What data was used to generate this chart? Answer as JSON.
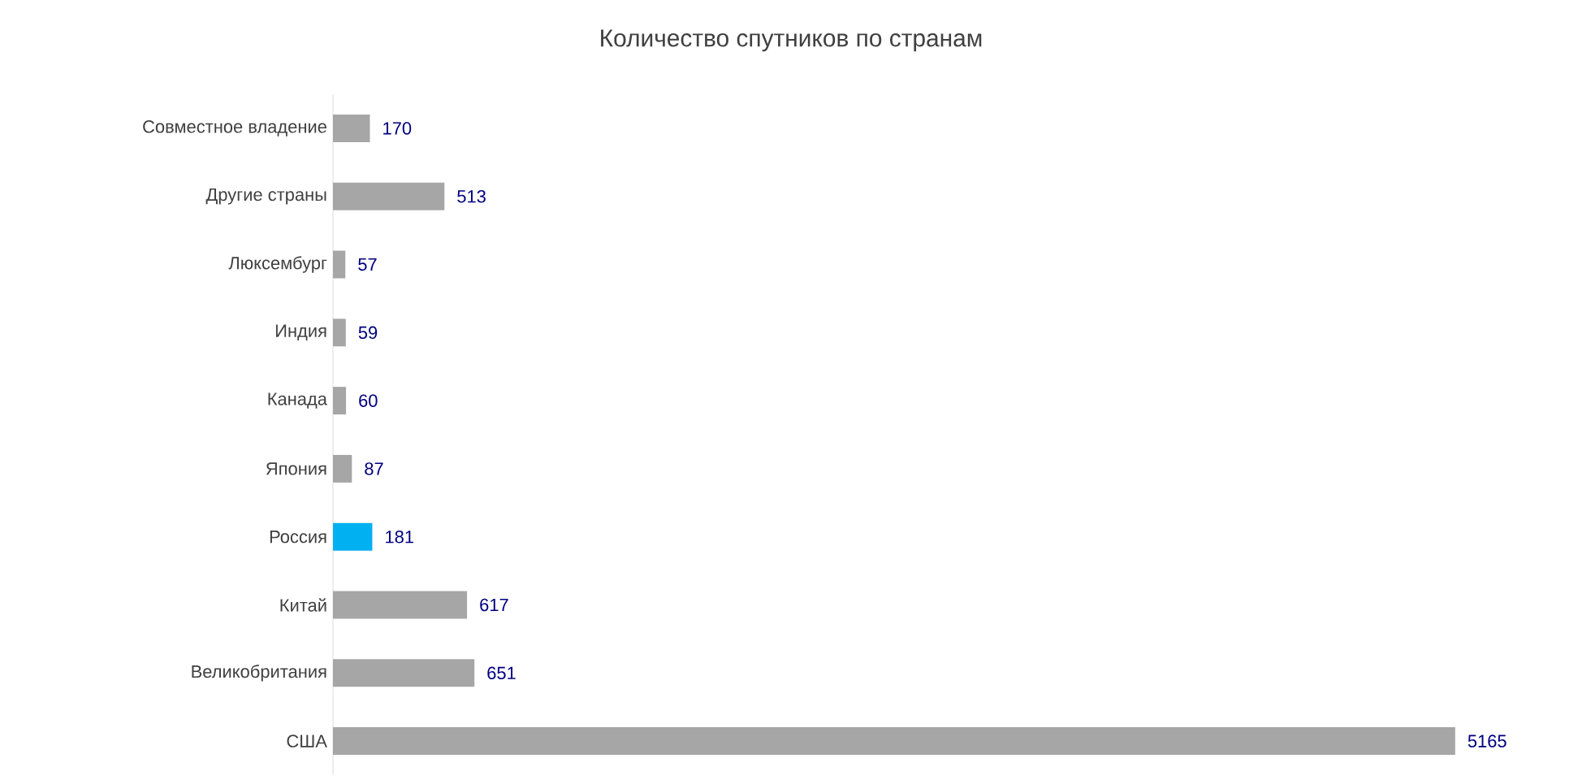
{
  "chart_data": {
    "type": "bar",
    "orientation": "horizontal",
    "title": "Количество спутников по странам",
    "categories": [
      "Совместное владение",
      "Другие страны",
      "Люксембург",
      "Индия",
      "Канада",
      "Япония",
      "Россия",
      "Китай",
      "Великобритания",
      "США"
    ],
    "values": [
      170,
      513,
      57,
      59,
      60,
      87,
      181,
      617,
      651,
      5165
    ],
    "colors": [
      "#a6a6a6",
      "#a6a6a6",
      "#a6a6a6",
      "#a6a6a6",
      "#a6a6a6",
      "#a6a6a6",
      "#00b0f0",
      "#a6a6a6",
      "#a6a6a6",
      "#a6a6a6"
    ],
    "data_labels": true
  }
}
